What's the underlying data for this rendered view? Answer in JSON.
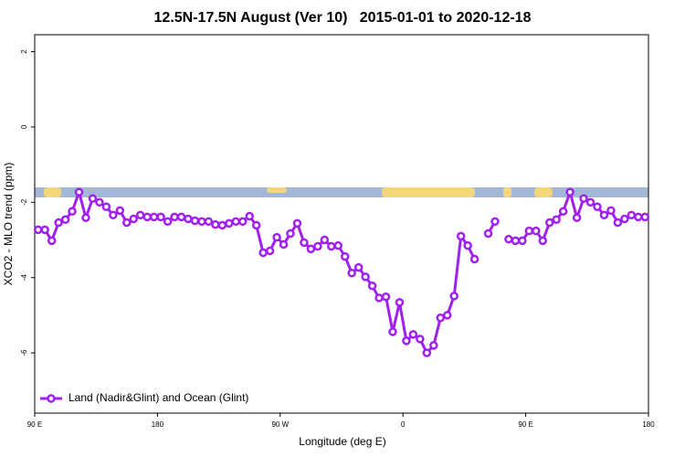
{
  "chart_data": {
    "type": "line",
    "title": "12.5N-17.5N August (Ver 10)   2015-01-01 to 2020-12-18",
    "x_label": "Longitude (deg E)",
    "y_label": "XCO2 - MLO trend (ppm)",
    "xlim": [
      90,
      540
    ],
    "ylim": [
      -7.6,
      2.45
    ],
    "xticks": [
      {
        "value": 90,
        "label": "90 E"
      },
      {
        "value": 180,
        "label": "180"
      },
      {
        "value": 270,
        "label": "90 W"
      },
      {
        "value": 360,
        "label": "0"
      },
      {
        "value": 450,
        "label": "90 E"
      },
      {
        "value": 540,
        "label": "180"
      }
    ],
    "yticks": [
      2,
      0,
      -2,
      -4,
      -6
    ],
    "legend": "bottom-left",
    "x": [
      92.5,
      97.5,
      102.5,
      107.5,
      112.5,
      117.5,
      122.5,
      127.5,
      132.5,
      137.5,
      142.5,
      147.5,
      152.5,
      157.5,
      162.5,
      167.5,
      172.5,
      177.5,
      182.5,
      187.5,
      192.5,
      197.5,
      202.5,
      207.5,
      212.5,
      217.5,
      222.5,
      227.5,
      232.5,
      237.5,
      242.5,
      247.5,
      252.5,
      257.5,
      262.5,
      267.5,
      272.5,
      277.5,
      282.5,
      287.5,
      292.5,
      297.5,
      302.5,
      307.5,
      312.5,
      317.5,
      322.5,
      327.5,
      332.5,
      337.5,
      342.5,
      347.5,
      352.5,
      357.5,
      362.5,
      367.5,
      372.5,
      377.5,
      382.5,
      387.5,
      392.5,
      397.5,
      402.5,
      407.5,
      412.5,
      417.5,
      422.5,
      427.5,
      432.5,
      437.5,
      442.5,
      447.5,
      452.5,
      457.5,
      462.5,
      467.5,
      472.5,
      477.5,
      482.5,
      487.5,
      492.5,
      497.5,
      502.5,
      507.5,
      512.5,
      517.5,
      522.5,
      527.5,
      532.5,
      537.5
    ],
    "series": [
      {
        "name": "Land (Nadir&Glint) and Ocean (Glint)",
        "color": "#a020f0",
        "values": [
          -2.73,
          -2.73,
          -3.02,
          -2.54,
          -2.46,
          -2.24,
          -1.73,
          -2.41,
          -1.9,
          -2.0,
          -2.12,
          -2.34,
          -2.22,
          -2.54,
          -2.44,
          -2.34,
          -2.39,
          -2.39,
          -2.39,
          -2.51,
          -2.39,
          -2.39,
          -2.44,
          -2.49,
          -2.51,
          -2.51,
          -2.59,
          -2.61,
          -2.56,
          -2.51,
          -2.51,
          -2.37,
          -2.61,
          -3.34,
          -3.29,
          -2.93,
          -3.12,
          -2.83,
          -2.56,
          -3.07,
          -3.24,
          -3.17,
          -3.0,
          -3.17,
          -3.15,
          -3.44,
          -3.88,
          -3.73,
          -3.98,
          -4.22,
          -4.54,
          -4.51,
          -5.44,
          -4.66,
          -5.68,
          -5.51,
          -5.63,
          -6.0,
          -5.8,
          -5.07,
          -5.0,
          -4.49,
          -2.9,
          -3.15,
          -3.51,
          null,
          -2.83,
          -2.51,
          null,
          -2.98,
          -3.02,
          -3.02,
          -2.76,
          -2.76,
          -3.02,
          -2.54,
          -2.46,
          -2.24,
          -1.73,
          -2.41,
          -1.9,
          -2.0,
          -2.12,
          -2.34,
          -2.22,
          -2.54,
          -2.44,
          -2.34,
          -2.39,
          -2.39
        ]
      }
    ]
  }
}
